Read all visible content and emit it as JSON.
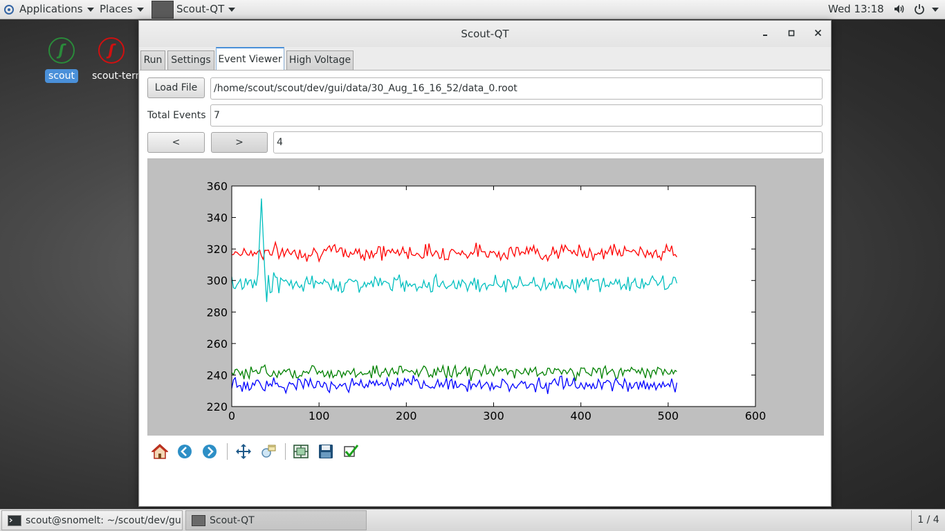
{
  "top_panel": {
    "applications": "Applications",
    "places": "Places",
    "active_app": "Scout-QT",
    "clock": "Wed 13:18"
  },
  "desktop_icons": [
    {
      "label": "scout",
      "color": "#2a8a3a"
    },
    {
      "label": "scout-term",
      "color": "#d01010"
    }
  ],
  "window": {
    "title": "Scout-QT",
    "tabs": [
      "Run",
      "Settings",
      "Event Viewer",
      "High Voltage"
    ],
    "active_tab": "Event Viewer",
    "load_file_label": "Load File",
    "file_path": "/home/scout/scout/dev/gui/data/30_Aug_16_16_52/data_0.root",
    "total_events_label": "Total Events",
    "total_events": "7",
    "prev_label": "<",
    "next_label": ">",
    "event_index": "4"
  },
  "chart_data": {
    "type": "line",
    "xlim": [
      0,
      600
    ],
    "ylim": [
      220,
      360
    ],
    "x_ticks": [
      0,
      100,
      200,
      300,
      400,
      500,
      600
    ],
    "y_ticks": [
      220,
      240,
      260,
      280,
      300,
      320,
      340,
      360
    ],
    "grid": false,
    "series": [
      {
        "color": "#ff0000",
        "x_range": [
          0,
          511
        ],
        "baseline": 318,
        "noise": 2.5,
        "spike": null
      },
      {
        "color": "#00bfbf",
        "x_range": [
          0,
          511
        ],
        "baseline": 298,
        "noise": 2.5,
        "spike": {
          "x": 34,
          "y": 352
        }
      },
      {
        "color": "#008000",
        "x_range": [
          0,
          511
        ],
        "baseline": 242,
        "noise": 2.2,
        "spike": null
      },
      {
        "color": "#0000ff",
        "x_range": [
          0,
          511
        ],
        "baseline": 234,
        "noise": 2.2,
        "spike": null
      }
    ]
  },
  "toolbar": {
    "buttons": [
      "home",
      "back",
      "forward",
      "pan",
      "zoom",
      "configure-subplots",
      "save",
      "edit"
    ]
  },
  "taskbar": {
    "items": [
      {
        "label": "scout@snomelt: ~/scout/dev/gui"
      },
      {
        "label": "Scout-QT"
      }
    ],
    "workspace": "1 / 4"
  }
}
